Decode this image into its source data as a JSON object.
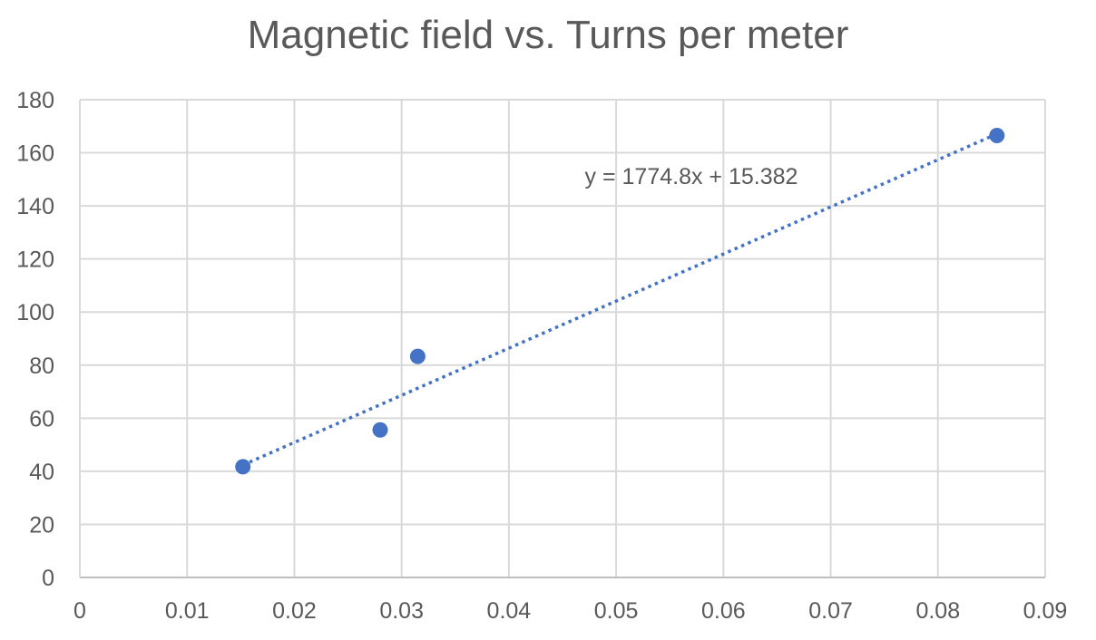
{
  "chart_data": {
    "type": "scatter",
    "title": "Magnetic field vs. Turns per meter",
    "xlabel": "",
    "ylabel": "",
    "xlim": [
      0,
      0.09
    ],
    "ylim": [
      0,
      180
    ],
    "xticks": [
      0,
      0.01,
      0.02,
      0.03,
      0.04,
      0.05,
      0.06,
      0.07,
      0.08,
      0.09
    ],
    "yticks": [
      0,
      20,
      40,
      60,
      80,
      100,
      120,
      140,
      160,
      180
    ],
    "grid": true,
    "legend": "none",
    "series": [
      {
        "color": "#4472C4",
        "points": [
          {
            "x": 0.0152,
            "y": 41.7
          },
          {
            "x": 0.028,
            "y": 55.6
          },
          {
            "x": 0.0315,
            "y": 83.3
          },
          {
            "x": 0.0855,
            "y": 166.5
          }
        ]
      }
    ],
    "trendline": {
      "type": "linear",
      "slope": 1774.8,
      "intercept": 15.382,
      "x_from": 0.0152,
      "x_to": 0.0855,
      "color": "#4472C4",
      "style": "dotted",
      "equation_label": "y = 1774.8x + 15.382"
    }
  }
}
